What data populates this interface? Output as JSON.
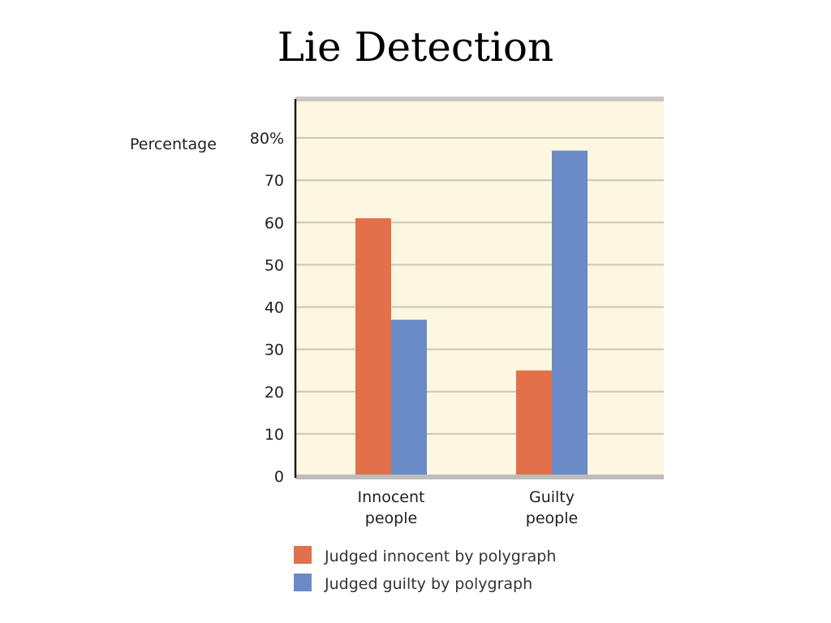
{
  "title": "Lie Detection",
  "chart_data": {
    "type": "bar",
    "ylabel": "Percentage",
    "xlabel": "",
    "ylim": [
      0,
      80
    ],
    "yticks": [
      "0",
      "10",
      "20",
      "30",
      "40",
      "50",
      "60",
      "70",
      "80%"
    ],
    "categories": [
      [
        "Innocent",
        "people"
      ],
      [
        "Guilty",
        "people"
      ]
    ],
    "series": [
      {
        "name": "Judged innocent by polygraph",
        "color": "#e2704a",
        "values": [
          61,
          25
        ]
      },
      {
        "name": "Judged guilty by polygraph",
        "color": "#6b8bc8",
        "values": [
          37,
          77
        ]
      }
    ],
    "grid": true,
    "legend_position": "bottom",
    "background": "#fdf6e0",
    "gridline_color": "#cbc6bb",
    "axis_color": "#1a1a1a"
  }
}
